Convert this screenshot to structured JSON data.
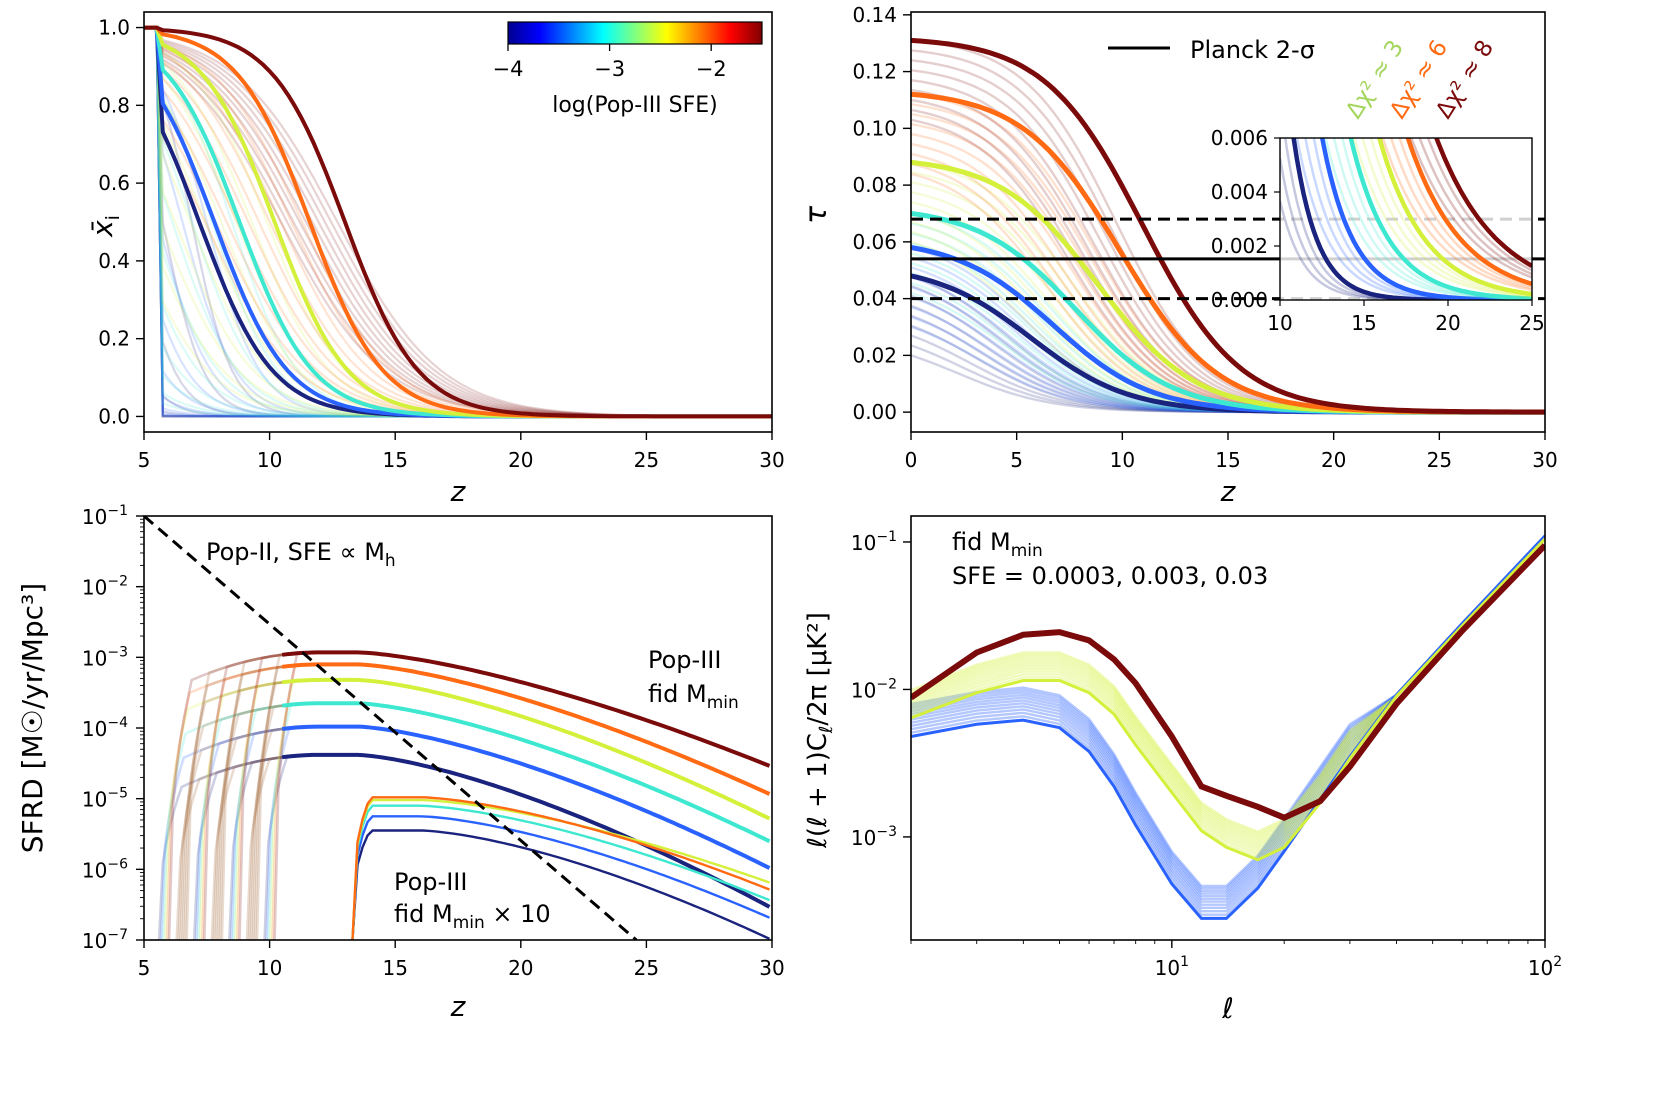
{
  "figure": {
    "description_free": true,
    "chart_data": [
      {
        "id": "xi",
        "type": "line",
        "ylabel": "x̄",
        "ylabel_sub": "i",
        "xlabel": "z",
        "xlim": [
          5,
          30
        ],
        "ylim": [
          -0.04,
          1.04
        ],
        "xticks": [
          5,
          10,
          15,
          20,
          25,
          30
        ],
        "xtick_labels": [
          "5",
          "10",
          "15",
          "20",
          "25",
          "30"
        ],
        "yticks": [
          0.0,
          0.2,
          0.4,
          0.6,
          0.8,
          1.0
        ],
        "ytick_labels": [
          "0.0",
          "0.2",
          "0.4",
          "0.6",
          "0.8",
          "1.0"
        ],
        "colorbar": {
          "label": "log(Pop-III SFE)",
          "range": [
            -4,
            -1.5
          ],
          "ticks": [
            -4,
            -3,
            -2
          ],
          "tick_labels": [
            "−4",
            "−3",
            "−2"
          ]
        },
        "series": [
          {
            "name": "log SFE -4.0",
            "color": "#1a237e",
            "z_half": 7.2,
            "width": 1.6,
            "step": null
          },
          {
            "name": "log SFE -3.5",
            "color": "#2962ff",
            "z_half": 7.8,
            "width": 1.6,
            "step": null
          },
          {
            "name": "log SFE -3.0",
            "color": "#3ee8d0",
            "z_half": 8.8,
            "width": 1.6,
            "step": null
          },
          {
            "name": "log SFE -2.5",
            "color": "#d4f03a",
            "z_half": 10.2,
            "width": 1.6,
            "step": null
          },
          {
            "name": "log SFE -2.0",
            "color": "#ff6a13",
            "z_half": 11.6,
            "width": 1.6,
            "step": null
          },
          {
            "name": "log SFE -1.5",
            "color": "#7b0a0a",
            "z_half": 13.0,
            "width": 1.6,
            "step": null
          }
        ]
      },
      {
        "id": "tau",
        "type": "line",
        "ylabel": "τ",
        "xlabel": "z",
        "xlim": [
          0,
          30
        ],
        "ylim": [
          -0.007,
          0.141
        ],
        "xticks": [
          0,
          5,
          10,
          15,
          20,
          25,
          30
        ],
        "xtick_labels": [
          "0",
          "5",
          "10",
          "15",
          "20",
          "25",
          "30"
        ],
        "yticks": [
          0.0,
          0.02,
          0.04,
          0.06,
          0.08,
          0.1,
          0.12,
          0.14
        ],
        "ytick_labels": [
          "0.00",
          "0.02",
          "0.04",
          "0.06",
          "0.08",
          "0.10",
          "0.12",
          "0.14"
        ],
        "planck": {
          "central": 0.054,
          "lower": 0.04,
          "upper": 0.068,
          "legend": "Planck 2-σ"
        },
        "delta_chi2_labels": [
          {
            "text": "Δχ² ≈ 3",
            "color": "#a4d65e"
          },
          {
            "text": "Δχ² ≈ 6",
            "color": "#ff6a13"
          },
          {
            "text": "Δχ² ≈ 8",
            "color": "#7b0a0a"
          }
        ],
        "series": [
          {
            "name": "log SFE -4.0",
            "color": "#1a237e",
            "tau0": 0.048
          },
          {
            "name": "log SFE -3.5",
            "color": "#2962ff",
            "tau0": 0.058
          },
          {
            "name": "log SFE -3.0",
            "color": "#3ee8d0",
            "tau0": 0.07
          },
          {
            "name": "log SFE -2.5",
            "color": "#d4f03a",
            "tau0": 0.088
          },
          {
            "name": "log SFE -2.0",
            "color": "#ff6a13",
            "tau0": 0.112
          },
          {
            "name": "log SFE -1.5",
            "color": "#7b0a0a",
            "tau0": 0.131
          }
        ],
        "inset": {
          "xlim": [
            10,
            25
          ],
          "ylim": [
            0,
            0.006
          ],
          "xticks": [
            10,
            15,
            20,
            25
          ],
          "xtick_labels": [
            "10",
            "15",
            "20",
            "25"
          ],
          "yticks": [
            0.0,
            0.002,
            0.004,
            0.006
          ],
          "ytick_labels": [
            "0.000",
            "0.002",
            "0.004",
            "0.006"
          ]
        }
      },
      {
        "id": "sfrd",
        "type": "line",
        "ylabel": "SFRD [M☉/yr/Mpc³]",
        "xlabel": "z",
        "yscale": "log",
        "xlim": [
          5,
          30
        ],
        "ylim": [
          1e-07,
          0.1
        ],
        "xticks": [
          5,
          10,
          15,
          20,
          25,
          30
        ],
        "xtick_labels": [
          "5",
          "10",
          "15",
          "20",
          "25",
          "30"
        ],
        "yticks": [
          -7,
          -6,
          -5,
          -4,
          -3,
          -2,
          -1
        ],
        "annotations": {
          "pop2": "Pop-II, SFE ∝ M",
          "pop2_sub": "h",
          "pop3_fid_line1": "Pop-III",
          "pop3_fid_line2": "fid M",
          "pop3_fid_sub": "min",
          "pop3_x10_line1": "Pop-III",
          "pop3_x10_line2": "fid M",
          "pop3_x10_sub": "min",
          "pop3_x10_suffix": " × 10"
        },
        "pop2_line": {
          "z": [
            5,
            24.6
          ],
          "log_sfrd": [
            -1.0,
            -7.0
          ]
        },
        "series_fid": [
          {
            "name": "log SFE -4.0",
            "color": "#1a237e",
            "log_peak": -4.38,
            "log_end": -6.55
          },
          {
            "name": "log SFE -3.5",
            "color": "#2962ff",
            "log_peak": -3.98,
            "log_end": -6.0
          },
          {
            "name": "log SFE -3.0",
            "color": "#3ee8d0",
            "log_peak": -3.65,
            "log_end": -5.62
          },
          {
            "name": "log SFE -2.5",
            "color": "#d4f03a",
            "log_peak": -3.32,
            "log_end": -5.3
          },
          {
            "name": "log SFE -2.0",
            "color": "#ff6a13",
            "log_peak": -3.1,
            "log_end": -4.95
          },
          {
            "name": "log SFE -1.5",
            "color": "#7b0a0a",
            "log_peak": -2.93,
            "log_end": -4.55
          }
        ],
        "series_x10": [
          {
            "name": "log SFE -4.0",
            "color": "#1a237e",
            "log_peak": -5.45,
            "log_end": -7.0
          },
          {
            "name": "log SFE -3.5",
            "color": "#2962ff",
            "log_peak": -5.25,
            "log_end": -6.7
          },
          {
            "name": "log SFE -3.0",
            "color": "#3ee8d0",
            "log_peak": -5.1,
            "log_end": -6.45
          },
          {
            "name": "log SFE -2.5",
            "color": "#d4f03a",
            "log_peak": -5.02,
            "log_end": -6.2
          },
          {
            "name": "log SFE -2.0",
            "color": "#ff6a13",
            "log_peak": -4.98,
            "log_end": -6.3
          }
        ]
      },
      {
        "id": "cl",
        "type": "line",
        "ylabel": "ℓ(ℓ + 1)C",
        "ylabel_sub": "ℓ",
        "ylabel_tail": "/2π [μK²]",
        "xlabel": "ℓ",
        "xscale": "log",
        "yscale": "log",
        "xlim": [
          2,
          100
        ],
        "ylim": [
          0.0002,
          0.15
        ],
        "xticks": [
          10,
          100
        ],
        "yticks": [
          -3,
          -2,
          -1
        ],
        "annotations": {
          "line1": "fid M",
          "line1_sub": "min",
          "line2": "SFE = 0.0003, 0.003, 0.03"
        },
        "series": [
          {
            "name": "SFE 0.0003",
            "color": "#2962ff",
            "l": [
              2,
              3,
              4,
              5,
              6,
              7,
              8,
              10,
              12,
              14,
              17,
              20,
              25,
              30,
              40,
              60,
              100
            ],
            "cl": [
              0.0048,
              0.0058,
              0.0062,
              0.0055,
              0.0038,
              0.0022,
              0.0012,
              0.00048,
              0.00028,
              0.00028,
              0.00045,
              0.0008,
              0.0018,
              0.0035,
              0.0092,
              0.028,
              0.11
            ]
          },
          {
            "name": "SFE 0.003",
            "color": "#d4f03a",
            "l": [
              2,
              3,
              4,
              5,
              6,
              7,
              8,
              10,
              12,
              14,
              17,
              20,
              25,
              30,
              40,
              60,
              100
            ],
            "cl": [
              0.0064,
              0.0095,
              0.0115,
              0.0115,
              0.0095,
              0.0068,
              0.0042,
              0.002,
              0.0011,
              0.00085,
              0.0007,
              0.00085,
              0.0017,
              0.0034,
              0.009,
              0.027,
              0.105
            ]
          },
          {
            "name": "SFE 0.03",
            "color": "#7b0a0a",
            "l": [
              2,
              3,
              4,
              5,
              6,
              7,
              8,
              10,
              12,
              14,
              17,
              20,
              25,
              30,
              40,
              60,
              100
            ],
            "cl": [
              0.0088,
              0.0178,
              0.0235,
              0.0245,
              0.0215,
              0.016,
              0.011,
              0.0048,
              0.0022,
              0.0019,
              0.0016,
              0.00135,
              0.00175,
              0.003,
              0.008,
              0.025,
              0.095
            ]
          }
        ]
      }
    ]
  }
}
